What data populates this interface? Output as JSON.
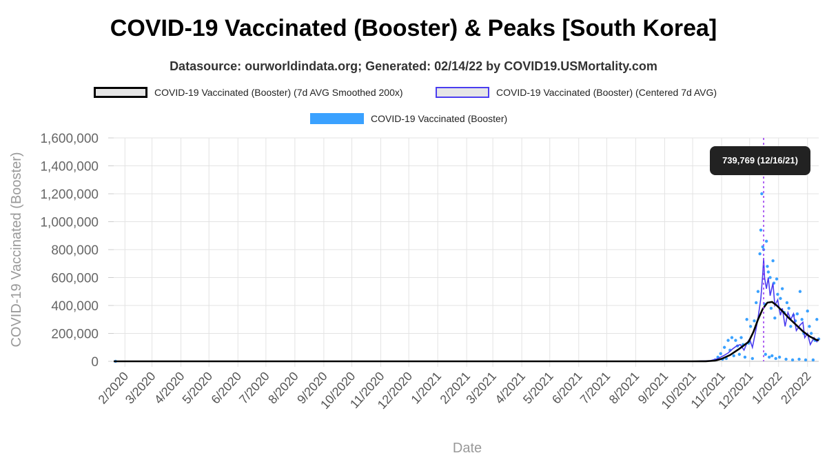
{
  "title": "COVID-19 Vaccinated (Booster) & Peaks [South Korea]",
  "subtitle": "Datasource: ourworldindata.org; Generated: 02/14/22 by COVID19.USMortality.com",
  "colors": {
    "smoothed": "#000000",
    "centered": "#4a3cf0",
    "daily": "#3aa1ff",
    "peak_marker": "#9b3df0",
    "tooltip_bg": "#222222"
  },
  "legend": [
    {
      "label": "COVID-19 Vaccinated (Booster) (7d AVG Smoothed 200x)",
      "style": "box-black"
    },
    {
      "label": "COVID-19 Vaccinated (Booster) (Centered 7d AVG)",
      "style": "box-blue"
    },
    {
      "label": "COVID-19 Vaccinated (Booster)",
      "style": "bar-lightblue"
    }
  ],
  "tooltip": {
    "text": "739,769 (12/16/21)"
  },
  "chart_data": {
    "type": "line",
    "title": "COVID-19 Vaccinated (Booster) & Peaks [South Korea]",
    "xlabel": "Date",
    "ylabel": "COVID-19 Vaccinated (Booster)",
    "ylim": [
      0,
      1600000
    ],
    "yticks": [
      0,
      200000,
      400000,
      600000,
      800000,
      1000000,
      1200000,
      1400000,
      1600000
    ],
    "ytick_labels": [
      "0",
      "200,000",
      "400,000",
      "600,000",
      "800,000",
      "1,000,000",
      "1,200,000",
      "1,400,000",
      "1,600,000"
    ],
    "xlim": [
      "2020-01-20",
      "2022-02-13"
    ],
    "xticks": [
      "2020-02-01",
      "2020-03-01",
      "2020-04-01",
      "2020-05-01",
      "2020-06-01",
      "2020-07-01",
      "2020-08-01",
      "2020-09-01",
      "2020-10-01",
      "2020-11-01",
      "2020-12-01",
      "2021-01-01",
      "2021-02-01",
      "2021-03-01",
      "2021-04-01",
      "2021-05-01",
      "2021-06-01",
      "2021-07-01",
      "2021-08-01",
      "2021-09-01",
      "2021-10-01",
      "2021-11-01",
      "2021-12-01",
      "2022-01-01",
      "2022-02-01"
    ],
    "xtick_labels": [
      "2/2020",
      "3/2020",
      "4/2020",
      "5/2020",
      "6/2020",
      "7/2020",
      "8/2020",
      "9/2020",
      "10/2020",
      "11/2020",
      "12/2020",
      "1/2021",
      "2/2021",
      "3/2021",
      "4/2021",
      "5/2021",
      "6/2021",
      "7/2021",
      "8/2021",
      "9/2021",
      "10/2021",
      "11/2021",
      "12/2021",
      "1/2022",
      "2/2022"
    ],
    "grid": true,
    "legend_position": "top",
    "peak": {
      "date": "2021-12-16",
      "value": 739769,
      "label": "739,769 (12/16/21)"
    },
    "series": [
      {
        "name": "COVID-19 Vaccinated (Booster) (7d AVG Smoothed 200x)",
        "style": "line",
        "points": [
          [
            "2020-01-20",
            0
          ],
          [
            "2021-10-01",
            0
          ],
          [
            "2021-10-15",
            500
          ],
          [
            "2021-10-25",
            5000
          ],
          [
            "2021-11-01",
            18000
          ],
          [
            "2021-11-10",
            45000
          ],
          [
            "2021-11-20",
            90000
          ],
          [
            "2021-11-30",
            140000
          ],
          [
            "2021-12-05",
            210000
          ],
          [
            "2021-12-10",
            300000
          ],
          [
            "2021-12-15",
            375000
          ],
          [
            "2021-12-20",
            420000
          ],
          [
            "2021-12-25",
            425000
          ],
          [
            "2021-12-30",
            400000
          ],
          [
            "2022-01-05",
            360000
          ],
          [
            "2022-01-12",
            310000
          ],
          [
            "2022-01-20",
            260000
          ],
          [
            "2022-01-27",
            215000
          ],
          [
            "2022-02-03",
            180000
          ],
          [
            "2022-02-10",
            155000
          ],
          [
            "2022-02-13",
            150000
          ]
        ]
      },
      {
        "name": "COVID-19 Vaccinated (Booster) (Centered 7d AVG)",
        "style": "line",
        "points": [
          [
            "2020-01-20",
            0
          ],
          [
            "2021-10-01",
            0
          ],
          [
            "2021-10-20",
            5000
          ],
          [
            "2021-10-28",
            20000
          ],
          [
            "2021-11-03",
            40000
          ],
          [
            "2021-11-08",
            60000
          ],
          [
            "2021-11-13",
            90000
          ],
          [
            "2021-11-17",
            110000
          ],
          [
            "2021-11-21",
            120000
          ],
          [
            "2021-11-25",
            80000
          ],
          [
            "2021-11-28",
            130000
          ],
          [
            "2021-12-01",
            160000
          ],
          [
            "2021-12-04",
            100000
          ],
          [
            "2021-12-07",
            200000
          ],
          [
            "2021-12-10",
            310000
          ],
          [
            "2021-12-13",
            450000
          ],
          [
            "2021-12-15",
            620000
          ],
          [
            "2021-12-16",
            739769
          ],
          [
            "2021-12-17",
            600000
          ],
          [
            "2021-12-19",
            520000
          ],
          [
            "2021-12-21",
            600000
          ],
          [
            "2021-12-23",
            470000
          ],
          [
            "2021-12-26",
            560000
          ],
          [
            "2021-12-28",
            400000
          ],
          [
            "2021-12-31",
            440000
          ],
          [
            "2022-01-03",
            330000
          ],
          [
            "2022-01-05",
            380000
          ],
          [
            "2022-01-08",
            250000
          ],
          [
            "2022-01-11",
            350000
          ],
          [
            "2022-01-14",
            300000
          ],
          [
            "2022-01-17",
            340000
          ],
          [
            "2022-01-20",
            220000
          ],
          [
            "2022-01-24",
            260000
          ],
          [
            "2022-01-27",
            280000
          ],
          [
            "2022-01-29",
            170000
          ],
          [
            "2022-02-01",
            200000
          ],
          [
            "2022-02-04",
            120000
          ],
          [
            "2022-02-08",
            170000
          ],
          [
            "2022-02-11",
            140000
          ],
          [
            "2022-02-13",
            160000
          ]
        ]
      },
      {
        "name": "COVID-19 Vaccinated (Booster)",
        "style": "dots",
        "points": [
          [
            "2020-01-22",
            0
          ],
          [
            "2021-10-25",
            10000
          ],
          [
            "2021-10-28",
            30000
          ],
          [
            "2021-10-31",
            55000
          ],
          [
            "2021-11-02",
            15000
          ],
          [
            "2021-11-04",
            100000
          ],
          [
            "2021-11-06",
            20000
          ],
          [
            "2021-11-08",
            150000
          ],
          [
            "2021-11-10",
            80000
          ],
          [
            "2021-11-12",
            170000
          ],
          [
            "2021-11-14",
            40000
          ],
          [
            "2021-11-16",
            150000
          ],
          [
            "2021-11-18",
            110000
          ],
          [
            "2021-11-20",
            50000
          ],
          [
            "2021-11-22",
            170000
          ],
          [
            "2021-11-24",
            120000
          ],
          [
            "2021-11-26",
            30000
          ],
          [
            "2021-11-28",
            300000
          ],
          [
            "2021-11-30",
            130000
          ],
          [
            "2021-12-02",
            250000
          ],
          [
            "2021-12-04",
            20000
          ],
          [
            "2021-12-06",
            290000
          ],
          [
            "2021-12-08",
            420000
          ],
          [
            "2021-12-10",
            500000
          ],
          [
            "2021-12-12",
            770000
          ],
          [
            "2021-12-13",
            940000
          ],
          [
            "2021-12-14",
            1200000
          ],
          [
            "2021-12-15",
            820000
          ],
          [
            "2021-12-16",
            800000
          ],
          [
            "2021-12-17",
            410000
          ],
          [
            "2021-12-18",
            50000
          ],
          [
            "2021-12-19",
            860000
          ],
          [
            "2021-12-20",
            680000
          ],
          [
            "2021-12-21",
            640000
          ],
          [
            "2021-12-22",
            30000
          ],
          [
            "2021-12-23",
            600000
          ],
          [
            "2021-12-24",
            380000
          ],
          [
            "2021-12-25",
            40000
          ],
          [
            "2021-12-26",
            720000
          ],
          [
            "2021-12-27",
            560000
          ],
          [
            "2021-12-28",
            310000
          ],
          [
            "2021-12-29",
            20000
          ],
          [
            "2021-12-30",
            590000
          ],
          [
            "2021-12-31",
            480000
          ],
          [
            "2022-01-02",
            30000
          ],
          [
            "2022-01-03",
            450000
          ],
          [
            "2022-01-05",
            520000
          ],
          [
            "2022-01-07",
            350000
          ],
          [
            "2022-01-09",
            15000
          ],
          [
            "2022-01-10",
            420000
          ],
          [
            "2022-01-12",
            380000
          ],
          [
            "2022-01-14",
            250000
          ],
          [
            "2022-01-16",
            10000
          ],
          [
            "2022-01-17",
            330000
          ],
          [
            "2022-01-19",
            290000
          ],
          [
            "2022-01-21",
            340000
          ],
          [
            "2022-01-23",
            15000
          ],
          [
            "2022-01-24",
            500000
          ],
          [
            "2022-01-26",
            300000
          ],
          [
            "2022-01-28",
            200000
          ],
          [
            "2022-01-30",
            10000
          ],
          [
            "2022-02-01",
            360000
          ],
          [
            "2022-02-03",
            250000
          ],
          [
            "2022-02-05",
            200000
          ],
          [
            "2022-02-07",
            10000
          ],
          [
            "2022-02-09",
            150000
          ],
          [
            "2022-02-11",
            300000
          ],
          [
            "2022-02-13",
            160000
          ]
        ]
      }
    ]
  }
}
